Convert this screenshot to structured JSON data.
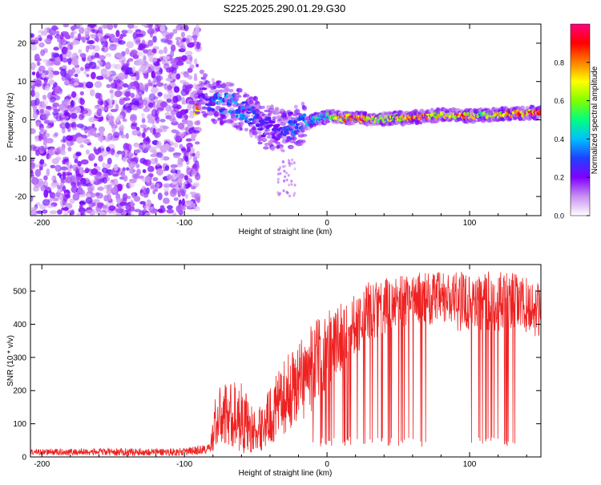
{
  "title": "S225.2025.290.01.29.G30",
  "chart_data": [
    {
      "type": "heatmap",
      "title": "S225.2025.290.01.29.G30",
      "xlabel": "Height of straight line (km)",
      "ylabel": "Frequency (Hz)",
      "xlim": [
        -208,
        150
      ],
      "ylim": [
        -25,
        25
      ],
      "xticks": [
        -200,
        -100,
        0,
        100
      ],
      "xtick_labels": [
        "-200",
        "-100",
        "0",
        "100"
      ],
      "yticks": [
        -20,
        -10,
        0,
        10,
        20
      ],
      "ytick_labels": [
        "-20",
        "-10",
        "0",
        "10",
        "20"
      ],
      "colorbar": {
        "label": "Normalized spectral amplitude",
        "range": [
          0,
          1
        ],
        "ticks": [
          0,
          0.2,
          0.4,
          0.6,
          0.8
        ],
        "tick_labels": [
          "0.0",
          "0.2",
          "0.4",
          "0.6",
          "0.8"
        ],
        "colormap": [
          "#ffffff",
          "#c890f0",
          "#8000ff",
          "#2040ff",
          "#00c0ff",
          "#00ff80",
          "#80ff00",
          "#ffff00",
          "#ff8000",
          "#ff0000",
          "#ff0080"
        ]
      },
      "noise_region_x": [
        -208,
        -90
      ],
      "ridge": [
        {
          "x": -90,
          "f": 8,
          "amp": 0.2
        },
        {
          "x": -82,
          "f": 5,
          "amp": 0.3
        },
        {
          "x": -75,
          "f": 4.5,
          "amp": 0.4
        },
        {
          "x": -68,
          "f": 4,
          "amp": 0.4
        },
        {
          "x": -60,
          "f": 3,
          "amp": 0.35
        },
        {
          "x": -52,
          "f": 1,
          "amp": 0.3
        },
        {
          "x": -45,
          "f": -2,
          "amp": 0.3
        },
        {
          "x": -38,
          "f": -2,
          "amp": 0.25
        },
        {
          "x": -30,
          "f": -3,
          "amp": 0.3
        },
        {
          "x": -22,
          "f": -2,
          "amp": 0.35
        },
        {
          "x": -15,
          "f": -1,
          "amp": 0.4
        },
        {
          "x": -8,
          "f": 0,
          "amp": 0.45
        },
        {
          "x": 0,
          "f": 1,
          "amp": 0.5
        },
        {
          "x": 10,
          "f": 0.5,
          "amp": 0.8
        },
        {
          "x": 25,
          "f": 0.3,
          "amp": 0.85
        },
        {
          "x": 40,
          "f": 0.2,
          "amp": 0.6
        },
        {
          "x": 55,
          "f": 0.5,
          "amp": 0.8
        },
        {
          "x": 70,
          "f": 1,
          "amp": 0.85
        },
        {
          "x": 85,
          "f": 1.5,
          "amp": 0.7
        },
        {
          "x": 95,
          "f": 1,
          "amp": 0.85
        },
        {
          "x": 110,
          "f": 1.2,
          "amp": 0.6
        },
        {
          "x": 125,
          "f": 1.5,
          "amp": 0.8
        },
        {
          "x": 140,
          "f": 1.8,
          "amp": 0.9
        },
        {
          "x": 150,
          "f": 2,
          "amp": 0.9
        }
      ]
    },
    {
      "type": "line",
      "xlabel": "Height of straight line (km)",
      "ylabel": "SNR (10 * v/v)",
      "xlim": [
        -208,
        150
      ],
      "ylim": [
        0,
        580
      ],
      "xticks": [
        -200,
        -100,
        0,
        100
      ],
      "xtick_labels": [
        "-200",
        "-100",
        "0",
        "100"
      ],
      "yticks": [
        0,
        100,
        200,
        300,
        400,
        500
      ],
      "ytick_labels": [
        "0",
        "100",
        "200",
        "300",
        "400",
        "500"
      ],
      "color": "#ff0000",
      "envelope": [
        {
          "x": -208,
          "mean": 15,
          "spread": 10
        },
        {
          "x": -100,
          "mean": 15,
          "spread": 12
        },
        {
          "x": -82,
          "mean": 25,
          "spread": 15
        },
        {
          "x": -78,
          "mean": 110,
          "spread": 90
        },
        {
          "x": -70,
          "mean": 130,
          "spread": 100
        },
        {
          "x": -60,
          "mean": 120,
          "spread": 110
        },
        {
          "x": -50,
          "mean": 70,
          "spread": 60
        },
        {
          "x": -40,
          "mean": 120,
          "spread": 90
        },
        {
          "x": -30,
          "mean": 180,
          "spread": 110
        },
        {
          "x": -20,
          "mean": 230,
          "spread": 130
        },
        {
          "x": -10,
          "mean": 270,
          "spread": 130
        },
        {
          "x": 0,
          "mean": 330,
          "spread": 120
        },
        {
          "x": 15,
          "mean": 390,
          "spread": 100
        },
        {
          "x": 30,
          "mean": 440,
          "spread": 90
        },
        {
          "x": 50,
          "mean": 470,
          "spread": 80
        },
        {
          "x": 70,
          "mean": 480,
          "spread": 80
        },
        {
          "x": 90,
          "mean": 470,
          "spread": 90
        },
        {
          "x": 110,
          "mean": 470,
          "spread": 90
        },
        {
          "x": 130,
          "mean": 470,
          "spread": 90
        },
        {
          "x": 150,
          "mean": 440,
          "spread": 80
        }
      ],
      "spikes_to": 30,
      "spike_regions": [
        [
          -10,
          70
        ],
        [
          100,
          132
        ]
      ]
    }
  ]
}
